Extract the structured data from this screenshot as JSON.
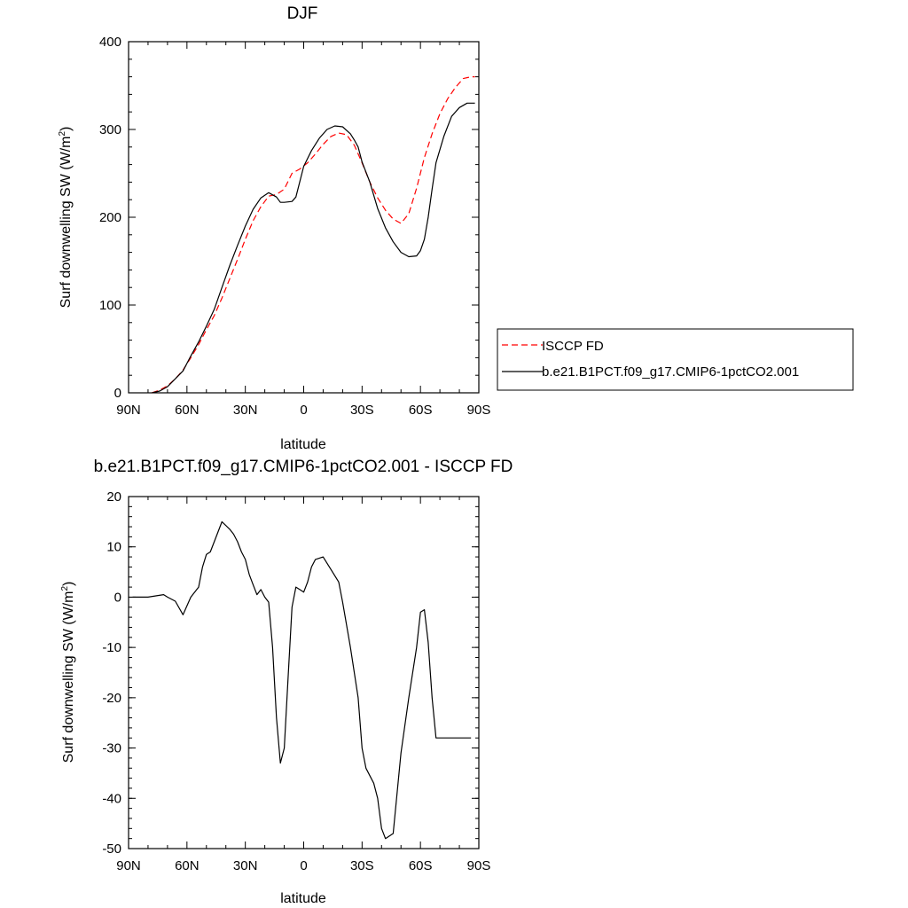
{
  "chart_data": [
    {
      "type": "line",
      "title": "DJF",
      "xlabel": "latitude",
      "ylabel": "Surf downwelling SW (W/m",
      "ylabel_sup": "2",
      "ylabel_close": ")",
      "xlim": [
        90,
        -90
      ],
      "ylim": [
        0,
        400
      ],
      "xtick_values": [
        90,
        60,
        30,
        0,
        -30,
        -60,
        -90
      ],
      "xtick_labels": [
        "90N",
        "60N",
        "30N",
        "0",
        "30S",
        "60S",
        "90S"
      ],
      "ytick_values": [
        0,
        100,
        200,
        300,
        400
      ],
      "ytick_labels": [
        "0",
        "100",
        "200",
        "300",
        "400"
      ],
      "legend_position": "right",
      "series": [
        {
          "name": "ISCCP FD",
          "color": "#ff0000",
          "dash": "dashed",
          "x": [
            78,
            74,
            70,
            66,
            62,
            58,
            54,
            50,
            46,
            42,
            38,
            34,
            30,
            26,
            22,
            18,
            14,
            10,
            6,
            2,
            -2,
            -6,
            -10,
            -14,
            -18,
            -22,
            -26,
            -30,
            -34,
            -38,
            -42,
            -46,
            -50,
            -54,
            -58,
            -62,
            -66,
            -70,
            -74,
            -78,
            -82,
            -86,
            -88
          ],
          "y": [
            0,
            3,
            8,
            16,
            26,
            40,
            55,
            72,
            88,
            108,
            130,
            152,
            175,
            196,
            212,
            224,
            226,
            232,
            250,
            255,
            262,
            272,
            283,
            292,
            296,
            294,
            282,
            262,
            240,
            222,
            208,
            198,
            193,
            204,
            233,
            268,
            295,
            318,
            335,
            348,
            358,
            360,
            360
          ]
        },
        {
          "name": "b.e21.B1PCT.f09_g17.CMIP6-1pctCO2.001",
          "color": "#000000",
          "dash": "solid",
          "x": [
            78,
            74,
            70,
            66,
            62,
            58,
            54,
            50,
            46,
            42,
            38,
            34,
            30,
            26,
            22,
            18,
            14,
            12,
            10,
            6,
            4,
            0,
            -4,
            -8,
            -12,
            -16,
            -20,
            -24,
            -26,
            -28,
            -30,
            -34,
            -38,
            -42,
            -46,
            -50,
            -54,
            -58,
            -60,
            -62,
            -64,
            -66,
            -68,
            -72,
            -76,
            -80,
            -84,
            -88
          ],
          "y": [
            0,
            2,
            7,
            16,
            25,
            42,
            58,
            76,
            95,
            120,
            145,
            168,
            190,
            209,
            222,
            228,
            223,
            217,
            217,
            218,
            223,
            258,
            276,
            290,
            300,
            304,
            303,
            295,
            288,
            280,
            263,
            240,
            210,
            188,
            172,
            160,
            155,
            156,
            162,
            175,
            200,
            232,
            262,
            292,
            315,
            325,
            330,
            330
          ]
        }
      ]
    },
    {
      "type": "line",
      "title": "b.e21.B1PCT.f09_g17.CMIP6-1pctCO2.001 - ISCCP FD",
      "xlabel": "latitude",
      "ylabel": "Surf downwelling SW (W/m",
      "ylabel_sup": "2",
      "ylabel_close": ")",
      "xlim": [
        90,
        -90
      ],
      "ylim": [
        -50,
        20
      ],
      "xtick_values": [
        90,
        60,
        30,
        0,
        -30,
        -60,
        -90
      ],
      "xtick_labels": [
        "90N",
        "60N",
        "30N",
        "0",
        "30S",
        "60S",
        "90S"
      ],
      "ytick_values": [
        20,
        10,
        0,
        -10,
        -20,
        -30,
        -40,
        -50
      ],
      "ytick_labels": [
        "20",
        "10",
        "0",
        "-10",
        "-20",
        "-30",
        "-40",
        "-50"
      ],
      "series": [
        {
          "color": "#000000",
          "dash": "solid",
          "x": [
            88,
            80,
            72,
            70,
            66,
            62,
            58,
            54,
            52,
            50,
            48,
            46,
            42,
            38,
            36,
            34,
            32,
            30,
            28,
            26,
            24,
            22,
            20,
            18,
            16,
            14,
            12,
            10,
            8,
            6,
            4,
            2,
            0,
            -2,
            -4,
            -6,
            -10,
            -14,
            -18,
            -20,
            -24,
            -28,
            -30,
            -32,
            -34,
            -36,
            -38,
            -40,
            -42,
            -46,
            -50,
            -54,
            -58,
            -60,
            -62,
            -64,
            -66,
            -68,
            -70,
            -72,
            -74,
            -76,
            -78,
            -80,
            -82,
            -84,
            -86
          ],
          "y": [
            0,
            0,
            0.5,
            0,
            -0.8,
            -3.5,
            0,
            2,
            6,
            8.5,
            9,
            11,
            15,
            13.5,
            12.5,
            11,
            9,
            7.5,
            4.5,
            2.5,
            0.5,
            1.5,
            0,
            -1,
            -10,
            -24,
            -33,
            -30,
            -16,
            -2,
            2,
            1.5,
            1,
            3,
            6,
            7.5,
            8,
            5.5,
            3,
            -1,
            -10,
            -20,
            -30,
            -34,
            -35.5,
            -37,
            -40,
            -46,
            -48,
            -47,
            -31,
            -20,
            -10,
            -3,
            -2.5,
            -9,
            -20,
            -28,
            -28,
            -28,
            -28,
            -28,
            -28,
            -28,
            -28,
            -28,
            -28
          ],
          "y_note_unused": []
        }
      ]
    }
  ]
}
